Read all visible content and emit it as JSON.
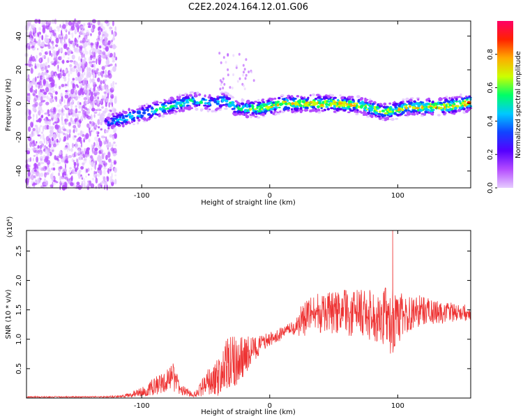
{
  "title": "C2E2.2024.164.12.01.G06",
  "colors": {
    "axis": "#000000",
    "snr_line": "#ee3333",
    "background": "#ffffff",
    "colorbar": [
      "#e6ccff",
      "#b44cff",
      "#5500ff",
      "#1144ff",
      "#00c8ff",
      "#00ff66",
      "#ccff00",
      "#ffaa00",
      "#ff2200",
      "#ff0066"
    ]
  },
  "chart_data": [
    {
      "type": "heatmap",
      "title": "",
      "xlabel": "Height of straight line (km)",
      "ylabel": "Frequency (Hz)",
      "xlim": [
        -190,
        157
      ],
      "ylim": [
        -50,
        49
      ],
      "xticks": [
        -100,
        0,
        100
      ],
      "yticks": [
        -40,
        -20,
        0,
        20,
        40
      ],
      "colorbar": {
        "label": "Normalized spectral amplitude",
        "range": [
          0.0,
          1.0
        ],
        "ticks": [
          0.0,
          0.2,
          0.4,
          0.6,
          0.8
        ],
        "tick_labels": [
          "0.0",
          "0.2",
          "0.4",
          "0.6",
          "0.8"
        ]
      },
      "noise_region": {
        "x_from": -190,
        "x_to": -120
      },
      "ridge": {
        "x": [
          -128,
          -110,
          -90,
          -75,
          -60,
          -45,
          -35,
          -25,
          -10,
          0,
          10,
          30,
          50,
          70,
          90,
          110,
          130,
          145,
          157
        ],
        "freq": [
          -12,
          -8,
          -4,
          -1,
          2,
          0,
          2,
          -3,
          -3,
          -2,
          0,
          0,
          0,
          -1,
          -5,
          -2,
          -2,
          -1,
          1
        ],
        "amplitude": [
          0.45,
          0.55,
          0.6,
          0.65,
          0.6,
          0.55,
          0.5,
          0.6,
          0.75,
          0.8,
          0.85,
          0.85,
          0.85,
          0.8,
          0.75,
          0.8,
          0.9,
          0.9,
          0.9
        ]
      }
    },
    {
      "type": "line",
      "title": "",
      "xlabel": "Height of straight line (km)",
      "ylabel": "SNR (10 * v/v)",
      "y_scale_label": "(x10⁴)",
      "xlim": [
        -190,
        157
      ],
      "ylim": [
        0,
        2.85
      ],
      "xticks": [
        -100,
        0,
        100
      ],
      "yticks": [
        0.5,
        1.0,
        1.5,
        2.0,
        2.5
      ],
      "ytick_labels": [
        "0.5",
        "1.0",
        "1.5",
        "2.0",
        "2.5"
      ],
      "series": [
        {
          "name": "SNR",
          "x": [
            -190,
            -160,
            -130,
            -115,
            -100,
            -90,
            -80,
            -75,
            -70,
            -60,
            -55,
            -50,
            -40,
            -35,
            -30,
            -25,
            -20,
            -15,
            -10,
            -5,
            0,
            10,
            20,
            25,
            30,
            40,
            50,
            60,
            70,
            80,
            90,
            95,
            100,
            110,
            120,
            130,
            140,
            150,
            157
          ],
          "mean": [
            0.02,
            0.02,
            0.02,
            0.03,
            0.1,
            0.2,
            0.3,
            0.35,
            0.15,
            0.05,
            0.12,
            0.25,
            0.35,
            0.5,
            0.6,
            0.65,
            0.7,
            0.8,
            0.85,
            0.95,
            1.0,
            1.1,
            1.2,
            1.3,
            1.4,
            1.45,
            1.45,
            1.45,
            1.45,
            1.4,
            1.4,
            1.3,
            1.35,
            1.45,
            1.5,
            1.45,
            1.45,
            1.45,
            1.45
          ],
          "spread": [
            0.01,
            0.01,
            0.01,
            0.02,
            0.08,
            0.15,
            0.2,
            0.25,
            0.1,
            0.04,
            0.1,
            0.2,
            0.35,
            0.45,
            0.5,
            0.45,
            0.35,
            0.3,
            0.2,
            0.15,
            0.12,
            0.12,
            0.12,
            0.3,
            0.3,
            0.35,
            0.35,
            0.4,
            0.4,
            0.45,
            0.5,
            0.6,
            0.45,
            0.3,
            0.25,
            0.2,
            0.18,
            0.15,
            0.12
          ],
          "peak": {
            "x": 96,
            "y": 2.85
          }
        }
      ]
    }
  ]
}
